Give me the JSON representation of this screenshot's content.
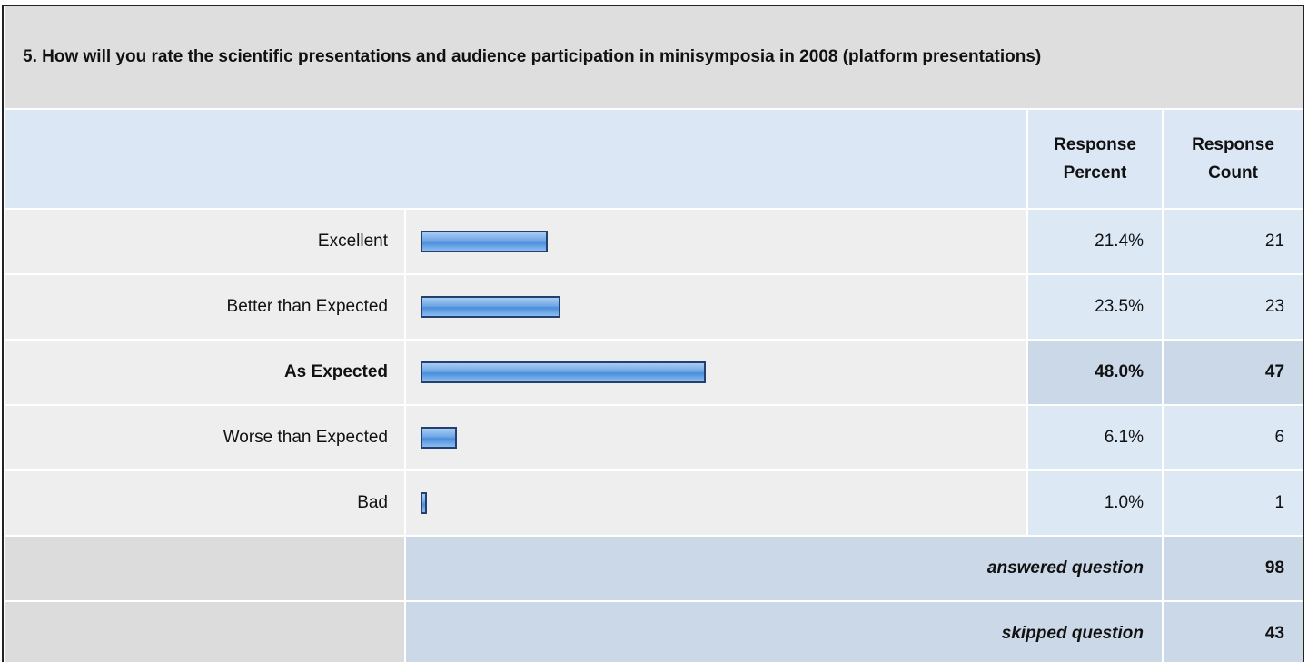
{
  "question": "5. How will you rate the scientific presentations and audience participation in minisymposia in 2008 (platform presentations)",
  "headers": {
    "percent": "Response Percent",
    "count": "Response Count"
  },
  "rows": [
    {
      "label": "Excellent",
      "percent": 21.4,
      "percent_label": "21.4%",
      "count": 21
    },
    {
      "label": "Better than Expected",
      "percent": 23.5,
      "percent_label": "23.5%",
      "count": 23
    },
    {
      "label": "As Expected",
      "percent": 48.0,
      "percent_label": "48.0%",
      "count": 47
    },
    {
      "label": "Worse than Expected",
      "percent": 6.1,
      "percent_label": "6.1%",
      "count": 6
    },
    {
      "label": "Bad",
      "percent": 1.0,
      "percent_label": "1.0%",
      "count": 1
    }
  ],
  "summary": [
    {
      "label": "answered question",
      "count": 98
    },
    {
      "label": "skipped question",
      "count": 43
    }
  ]
}
